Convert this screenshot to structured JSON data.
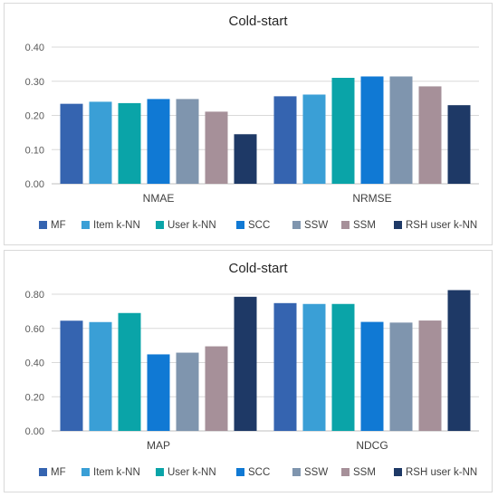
{
  "chart_data": [
    {
      "type": "bar",
      "title": "Cold-start",
      "categories": [
        "NMAE",
        "NRMSE"
      ],
      "ylim": [
        0,
        0.4
      ],
      "yticks": [
        "0.00",
        "0.10",
        "0.20",
        "0.30",
        "0.40"
      ],
      "grid": true,
      "legend_position": "bottom",
      "series": [
        {
          "name": "MF",
          "color": "#3564b0",
          "values": [
            0.234,
            0.256
          ]
        },
        {
          "name": "Item k-NN",
          "color": "#3a9fd6",
          "values": [
            0.24,
            0.261
          ]
        },
        {
          "name": "User k-NN",
          "color": "#0aa4a8",
          "values": [
            0.236,
            0.31
          ]
        },
        {
          "name": "SCC",
          "color": "#1079d4",
          "values": [
            0.248,
            0.314
          ]
        },
        {
          "name": "SSW",
          "color": "#7f95ae",
          "values": [
            0.248,
            0.314
          ]
        },
        {
          "name": "SSM",
          "color": "#a69099",
          "values": [
            0.211,
            0.285
          ]
        },
        {
          "name": "RSH user k-NN",
          "color": "#1e3966",
          "values": [
            0.145,
            0.23
          ]
        }
      ]
    },
    {
      "type": "bar",
      "title": "Cold-start",
      "categories": [
        "MAP",
        "NDCG"
      ],
      "ylim": [
        0,
        0.8
      ],
      "yticks": [
        "0.00",
        "0.20",
        "0.40",
        "0.60",
        "0.80"
      ],
      "grid": true,
      "legend_position": "bottom",
      "series": [
        {
          "name": "MF",
          "color": "#3564b0",
          "values": [
            0.645,
            0.748
          ]
        },
        {
          "name": "Item k-NN",
          "color": "#3a9fd6",
          "values": [
            0.637,
            0.743
          ]
        },
        {
          "name": "User k-NN",
          "color": "#0aa4a8",
          "values": [
            0.69,
            0.743
          ]
        },
        {
          "name": "SCC",
          "color": "#1079d4",
          "values": [
            0.448,
            0.638
          ]
        },
        {
          "name": "SSW",
          "color": "#7f95ae",
          "values": [
            0.458,
            0.634
          ]
        },
        {
          "name": "SSM",
          "color": "#a69099",
          "values": [
            0.495,
            0.646
          ]
        },
        {
          "name": "RSH user k-NN",
          "color": "#1e3966",
          "values": [
            0.785,
            0.824
          ]
        }
      ]
    }
  ]
}
